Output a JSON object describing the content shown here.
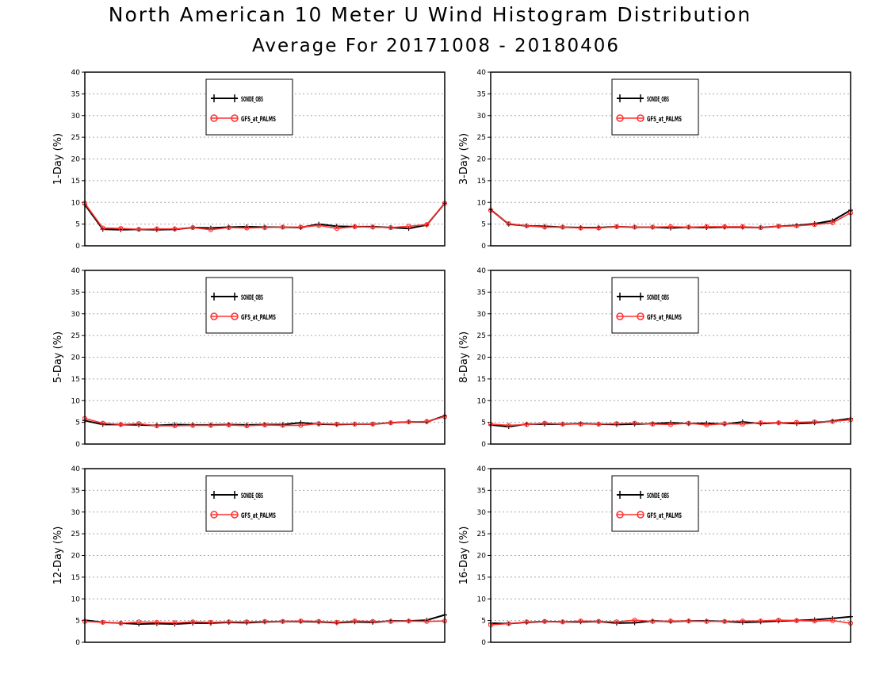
{
  "title": "North American 10 Meter U Wind Histogram Distribution",
  "subtitle": "Average For 20171008 - 20180406",
  "colors": {
    "series1": "#000000",
    "series2": "#ff3030",
    "grid": "#a8a8a8"
  },
  "chart_data": [
    {
      "type": "line",
      "ylabel": "1-Day (%)",
      "ylim": [
        0,
        40
      ],
      "yticks": [
        "0",
        "5",
        "10",
        "15",
        "20",
        "25",
        "30",
        "35",
        "40"
      ],
      "grid": true,
      "legend": "top-center",
      "x": [
        1,
        2,
        3,
        4,
        5,
        6,
        7,
        8,
        9,
        10,
        11,
        12,
        13,
        14,
        15,
        16,
        17,
        18,
        19,
        20,
        21
      ],
      "series": [
        {
          "name": "SONDE_OBS",
          "marker": "plus",
          "values": [
            9.5,
            3.8,
            3.7,
            3.8,
            3.7,
            3.8,
            4.2,
            4.1,
            4.3,
            4.4,
            4.3,
            4.3,
            4.2,
            5.0,
            4.5,
            4.4,
            4.4,
            4.2,
            4.0,
            4.8,
            9.8
          ]
        },
        {
          "name": "GFS_at_PALMS",
          "marker": "circle",
          "values": [
            9.8,
            4.1,
            4.0,
            3.8,
            3.9,
            3.9,
            4.2,
            3.7,
            4.2,
            4.1,
            4.2,
            4.3,
            4.3,
            4.7,
            4.0,
            4.4,
            4.3,
            4.2,
            4.5,
            4.9,
            9.8
          ]
        }
      ]
    },
    {
      "type": "line",
      "ylabel": "3-Day (%)",
      "ylim": [
        0,
        40
      ],
      "yticks": [
        "0",
        "5",
        "10",
        "15",
        "20",
        "25",
        "30",
        "35",
        "40"
      ],
      "grid": true,
      "legend": "top-center",
      "x": [
        1,
        2,
        3,
        4,
        5,
        6,
        7,
        8,
        9,
        10,
        11,
        12,
        13,
        14,
        15,
        16,
        17,
        18,
        19,
        20,
        21
      ],
      "series": [
        {
          "name": "SONDE_OBS",
          "marker": "plus",
          "values": [
            8.3,
            5.0,
            4.6,
            4.5,
            4.3,
            4.2,
            4.2,
            4.4,
            4.3,
            4.3,
            4.1,
            4.3,
            4.2,
            4.3,
            4.3,
            4.2,
            4.5,
            4.7,
            5.1,
            5.8,
            8.2
          ]
        },
        {
          "name": "GFS_at_PALMS",
          "marker": "circle",
          "values": [
            8.2,
            5.1,
            4.6,
            4.3,
            4.3,
            4.1,
            4.1,
            4.4,
            4.3,
            4.3,
            4.4,
            4.3,
            4.4,
            4.4,
            4.4,
            4.2,
            4.5,
            4.6,
            4.9,
            5.3,
            7.6
          ]
        }
      ]
    },
    {
      "type": "line",
      "ylabel": "5-Day (%)",
      "ylim": [
        0,
        40
      ],
      "yticks": [
        "0",
        "5",
        "10",
        "15",
        "20",
        "25",
        "30",
        "35",
        "40"
      ],
      "grid": true,
      "legend": "top-center",
      "x": [
        1,
        2,
        3,
        4,
        5,
        6,
        7,
        8,
        9,
        10,
        11,
        12,
        13,
        14,
        15,
        16,
        17,
        18,
        19,
        20,
        21
      ],
      "series": [
        {
          "name": "SONDE_OBS",
          "marker": "plus",
          "values": [
            5.4,
            4.5,
            4.5,
            4.4,
            4.3,
            4.5,
            4.4,
            4.4,
            4.5,
            4.4,
            4.5,
            4.5,
            4.9,
            4.6,
            4.5,
            4.6,
            4.6,
            4.9,
            5.1,
            5.1,
            6.5
          ]
        },
        {
          "name": "GFS_at_PALMS",
          "marker": "circle",
          "values": [
            5.9,
            4.8,
            4.5,
            4.7,
            4.2,
            4.2,
            4.3,
            4.3,
            4.4,
            4.2,
            4.4,
            4.3,
            4.3,
            4.7,
            4.6,
            4.6,
            4.6,
            4.9,
            5.1,
            5.2,
            6.3
          ]
        }
      ]
    },
    {
      "type": "line",
      "ylabel": "8-Day (%)",
      "ylim": [
        0,
        40
      ],
      "yticks": [
        "0",
        "5",
        "10",
        "15",
        "20",
        "25",
        "30",
        "35",
        "40"
      ],
      "grid": true,
      "legend": "top-center",
      "x": [
        1,
        2,
        3,
        4,
        5,
        6,
        7,
        8,
        9,
        10,
        11,
        12,
        13,
        14,
        15,
        16,
        17,
        18,
        19,
        20,
        21
      ],
      "series": [
        {
          "name": "SONDE_OBS",
          "marker": "plus",
          "values": [
            4.4,
            4.0,
            4.6,
            4.6,
            4.6,
            4.7,
            4.6,
            4.5,
            4.6,
            4.7,
            4.9,
            4.7,
            4.8,
            4.6,
            5.1,
            4.7,
            4.9,
            4.7,
            4.9,
            5.3,
            5.9
          ]
        },
        {
          "name": "GFS_at_PALMS",
          "marker": "circle",
          "values": [
            4.6,
            4.3,
            4.5,
            4.8,
            4.6,
            4.6,
            4.6,
            4.7,
            4.8,
            4.6,
            4.5,
            4.8,
            4.4,
            4.7,
            4.6,
            4.9,
            4.9,
            5.0,
            5.1,
            5.2,
            5.6
          ]
        }
      ]
    },
    {
      "type": "line",
      "ylabel": "12-Day (%)",
      "ylim": [
        0,
        40
      ],
      "yticks": [
        "0",
        "5",
        "10",
        "15",
        "20",
        "25",
        "30",
        "35",
        "40"
      ],
      "grid": true,
      "legend": "top-center",
      "x": [
        1,
        2,
        3,
        4,
        5,
        6,
        7,
        8,
        9,
        10,
        11,
        12,
        13,
        14,
        15,
        16,
        17,
        18,
        19,
        20,
        21
      ],
      "series": [
        {
          "name": "SONDE_OBS",
          "marker": "plus",
          "values": [
            5.1,
            4.6,
            4.4,
            4.2,
            4.3,
            4.2,
            4.4,
            4.4,
            4.6,
            4.5,
            4.7,
            4.8,
            4.8,
            4.7,
            4.5,
            4.7,
            4.6,
            4.9,
            4.9,
            5.1,
            6.3
          ]
        },
        {
          "name": "GFS_at_PALMS",
          "marker": "circle",
          "values": [
            4.8,
            4.6,
            4.4,
            4.7,
            4.6,
            4.5,
            4.7,
            4.6,
            4.7,
            4.7,
            4.8,
            4.8,
            4.9,
            4.8,
            4.6,
            4.9,
            4.8,
            4.8,
            4.9,
            4.8,
            4.9
          ]
        }
      ]
    },
    {
      "type": "line",
      "ylabel": "16-Day (%)",
      "ylim": [
        0,
        40
      ],
      "yticks": [
        "0",
        "5",
        "10",
        "15",
        "20",
        "25",
        "30",
        "35",
        "40"
      ],
      "grid": true,
      "legend": "top-center",
      "x": [
        1,
        2,
        3,
        4,
        5,
        6,
        7,
        8,
        9,
        10,
        11,
        12,
        13,
        14,
        15,
        16,
        17,
        18,
        19,
        20,
        21
      ],
      "series": [
        {
          "name": "SONDE_OBS",
          "marker": "plus",
          "values": [
            4.4,
            4.3,
            4.6,
            4.8,
            4.7,
            4.7,
            4.8,
            4.4,
            4.5,
            4.9,
            4.8,
            4.9,
            4.9,
            4.8,
            4.6,
            4.7,
            4.9,
            5.0,
            5.2,
            5.5,
            5.9
          ]
        },
        {
          "name": "GFS_at_PALMS",
          "marker": "circle",
          "values": [
            4.0,
            4.3,
            4.7,
            4.8,
            4.7,
            4.9,
            4.8,
            4.7,
            5.1,
            4.8,
            4.9,
            4.9,
            4.8,
            4.8,
            4.9,
            4.9,
            5.1,
            5.0,
            4.9,
            5.0,
            4.4
          ]
        }
      ]
    }
  ]
}
